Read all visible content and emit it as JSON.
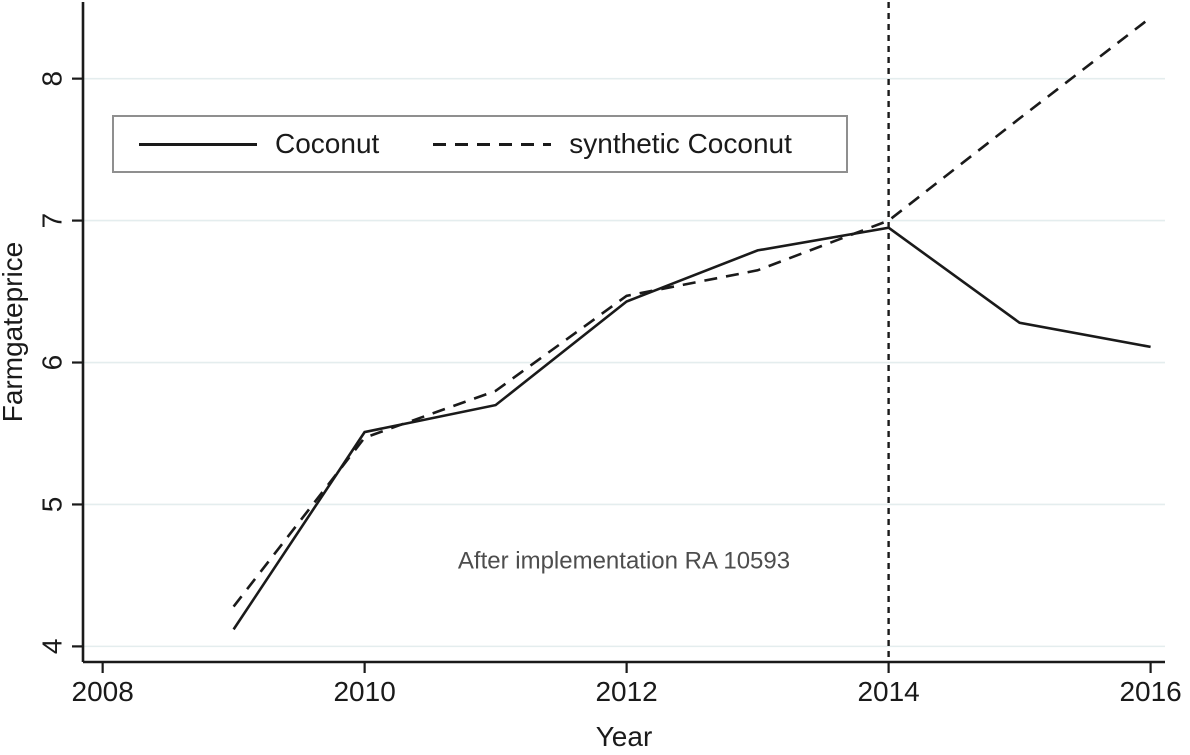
{
  "colors": {
    "line": "#1a1a1a",
    "axis": "#1a1a1a",
    "grid": "#e4edee",
    "annotation": "#4d4d4d",
    "legend_border": "#8f8f8f",
    "background": "#ffffff"
  },
  "chart_data": {
    "type": "line",
    "title": "",
    "xlabel": "Year",
    "ylabel": "Farmgateprice",
    "x_ticks": [
      2008,
      2010,
      2012,
      2014,
      2016
    ],
    "y_ticks": [
      4,
      5,
      6,
      7,
      8
    ],
    "xlim": [
      2007.85,
      2016.11
    ],
    "ylim": [
      3.89,
      8.54
    ],
    "grid": "horizontal",
    "legend_position": "top-left",
    "x": [
      2009,
      2010,
      2011,
      2012,
      2013,
      2014,
      2015,
      2016
    ],
    "series": [
      {
        "name": "Coconut",
        "style": "solid",
        "values": [
          4.12,
          5.51,
          5.7,
          6.43,
          6.79,
          6.95,
          6.28,
          6.11
        ]
      },
      {
        "name": "synthetic Coconut",
        "style": "dashed",
        "values": [
          4.28,
          5.47,
          5.8,
          6.47,
          6.65,
          7.0,
          7.72,
          8.43
        ]
      }
    ],
    "vline": {
      "x": 2014,
      "style": "dashed"
    },
    "annotation": {
      "text": "After implementation RA 10593",
      "x": 2011.98,
      "y": 4.55
    }
  }
}
